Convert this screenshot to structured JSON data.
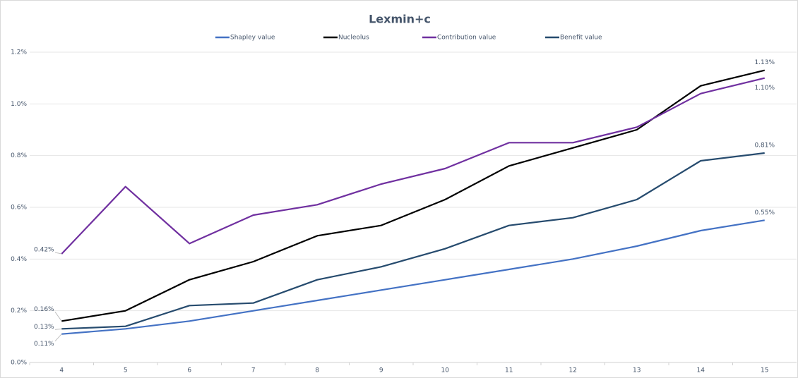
{
  "chart_data": {
    "type": "line",
    "title": "Lexmin+c",
    "categories": [
      "4",
      "5",
      "6",
      "7",
      "8",
      "9",
      "10",
      "11",
      "12",
      "13",
      "14",
      "15"
    ],
    "series": [
      {
        "name": "Shapley value",
        "color": "#4472c4",
        "values": [
          0.11,
          0.13,
          0.16,
          0.2,
          0.24,
          0.28,
          0.32,
          0.36,
          0.4,
          0.45,
          0.51,
          0.55
        ],
        "value_labels": [
          "0.11%",
          null,
          null,
          null,
          null,
          null,
          null,
          null,
          null,
          null,
          null,
          "0.55%"
        ]
      },
      {
        "name": "Nucleolus",
        "color": "#000000",
        "values": [
          0.16,
          0.2,
          0.32,
          0.39,
          0.49,
          0.53,
          0.63,
          0.76,
          0.83,
          0.9,
          1.07,
          1.13
        ],
        "value_labels": [
          "0.16%",
          null,
          null,
          null,
          null,
          null,
          null,
          null,
          null,
          null,
          null,
          "1.13%"
        ]
      },
      {
        "name": "Contribution value",
        "color": "#7030a0",
        "values": [
          0.42,
          0.68,
          0.46,
          0.57,
          0.61,
          0.69,
          0.75,
          0.85,
          0.85,
          0.91,
          1.04,
          1.1
        ],
        "value_labels": [
          "0.42%",
          null,
          null,
          null,
          null,
          null,
          null,
          null,
          null,
          null,
          null,
          "1.10%"
        ]
      },
      {
        "name": "Benefit value",
        "color": "#264b6e",
        "values": [
          0.13,
          0.14,
          0.22,
          0.23,
          0.32,
          0.37,
          0.44,
          0.53,
          0.56,
          0.63,
          0.78,
          0.81
        ],
        "value_labels": [
          "0.13%",
          null,
          null,
          null,
          null,
          null,
          null,
          null,
          null,
          null,
          null,
          "0.81%"
        ]
      }
    ],
    "ylim": [
      0,
      1.2
    ],
    "yticks": [
      {
        "value": 0,
        "label": "0.0%"
      },
      {
        "value": 0.2,
        "label": "0.2%"
      },
      {
        "value": 0.4,
        "label": "0.4%"
      },
      {
        "value": 0.6,
        "label": "0.6%"
      },
      {
        "value": 0.8,
        "label": "0.8%"
      },
      {
        "value": 1.0,
        "label": "1.0%"
      },
      {
        "value": 1.2,
        "label": "1.2%"
      }
    ],
    "grid": true,
    "legend": "top"
  }
}
